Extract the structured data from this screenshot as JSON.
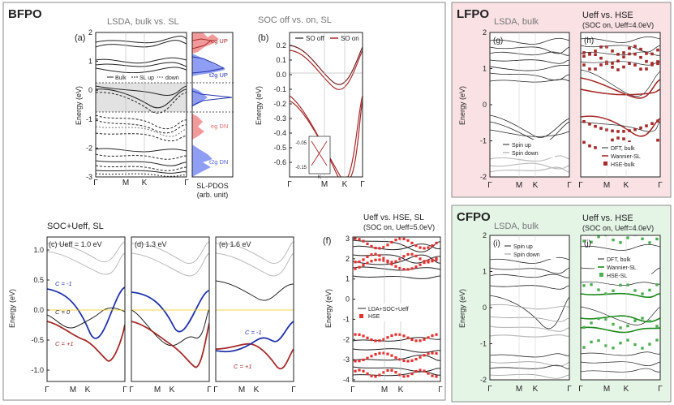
{
  "panels": {
    "bfpo": {
      "label": "BFPO",
      "a": {
        "tag": "(a)",
        "title": "LSDA, bulk vs. SL",
        "yticks": [
          "2",
          "1",
          "0",
          "-1",
          "-2",
          "-3"
        ],
        "ylabel": "Energy (eV)",
        "xticks": [
          "Γ",
          "M",
          "K",
          "Γ"
        ],
        "legend": {
          "bulk": "Bulk",
          "slup": "SL up",
          "down": "down"
        },
        "pdos": {
          "eg_up": "eg UP",
          "t2g_up": "t2g UP",
          "eg_dn": "eg DN",
          "t2g_dn": "t2g DN",
          "caption1": "SL-PDOS",
          "caption2": "(arb. unit)"
        }
      },
      "b": {
        "tag": "(b)",
        "title": "SOC off vs. on, SL",
        "yticks": [
          "0.2",
          "0.1",
          "0.0",
          "-0.1",
          "-0.2",
          "-0.3",
          "-0.4",
          "-0.5",
          "-0.6"
        ],
        "ylabel": "Energy (eV)",
        "xticks": [
          "Γ",
          "M",
          "K",
          "Γ"
        ],
        "legend": {
          "off": "SO off",
          "on": "SO on"
        },
        "inset": {
          "y1": "-0.05",
          "y2": "-0.15",
          "x": "K"
        }
      },
      "cde": {
        "title": "SOC+Ueff, SL",
        "c_tag": "(c) Ueff = 1.0 eV",
        "d_tag": "(d) 1.3 eV",
        "e_tag": "(e) 1.6 eV",
        "yticks": [
          "1.0",
          "0.5",
          "0.0",
          "-0.5",
          "-1.0"
        ],
        "ylabel": "Energy (eV)",
        "xticks": [
          "Γ",
          "M",
          "K",
          "Γ"
        ],
        "chern": {
          "cm1": "C = -1",
          "c0": "C = 0",
          "cp1": "C = +1"
        }
      },
      "f": {
        "tag": "(f)",
        "title": "Ueff vs. HSE, SL",
        "subtitle": "(SOC on, Ueff=5.0eV)",
        "yticks": [
          "3",
          "2",
          "1",
          "0",
          "-1",
          "-2",
          "-3",
          "-4"
        ],
        "ylabel": "Energy (eV)",
        "xticks": [
          "Γ",
          "M",
          "K",
          "Γ"
        ],
        "legend": {
          "lda": "LDA+SOC+Ueff",
          "hse": "HSE"
        }
      }
    },
    "lfpo": {
      "label": "LFPO",
      "g": {
        "tag": "(g)",
        "title": "LSDA, bulk",
        "legend": {
          "up": "Spin up",
          "down": "Spin down"
        }
      },
      "h": {
        "tag": "(h)",
        "title": "Ueff vs. HSE",
        "subtitle": "(SOC on, Ueff=4.0eV)",
        "legend": {
          "dft": "DFT, bulk",
          "wan": "Wannier-SL",
          "hse": "HSE-bulk"
        }
      },
      "yticks": [
        "2",
        "1",
        "0",
        "-1",
        "-2"
      ],
      "ylabel": "Energy (eV)",
      "xticks": [
        "Γ",
        "M",
        "K",
        "Γ"
      ]
    },
    "cfpo": {
      "label": "CFPO",
      "i": {
        "tag": "(i)",
        "title": "LSDA, bulk",
        "legend": {
          "up": "Spin up",
          "down": "Spin down"
        }
      },
      "j": {
        "tag": "(j)",
        "title": "Ueff vs. HSE",
        "subtitle": "(SOC on, Ueff=4.0eV)",
        "legend": {
          "dft": "DFT, bulk",
          "wan": "Wannier-SL",
          "hse": "HSE-SL"
        }
      },
      "yticks": [
        "2",
        "1",
        "0",
        "-1",
        "-2"
      ],
      "ylabel": "Energy (eV)",
      "xticks": [
        "Γ",
        "M",
        "K",
        "Γ"
      ]
    }
  },
  "colors": {
    "lfpo_bg": "#f9e1e4",
    "cfpo_bg": "#e4f5e6",
    "red": "#a52a2a",
    "blue": "#2233aa",
    "green": "#1a8a1a",
    "pdos_red": "#f29a9a",
    "pdos_blue": "#8f9ef2",
    "shade": "#e2e2e2"
  }
}
